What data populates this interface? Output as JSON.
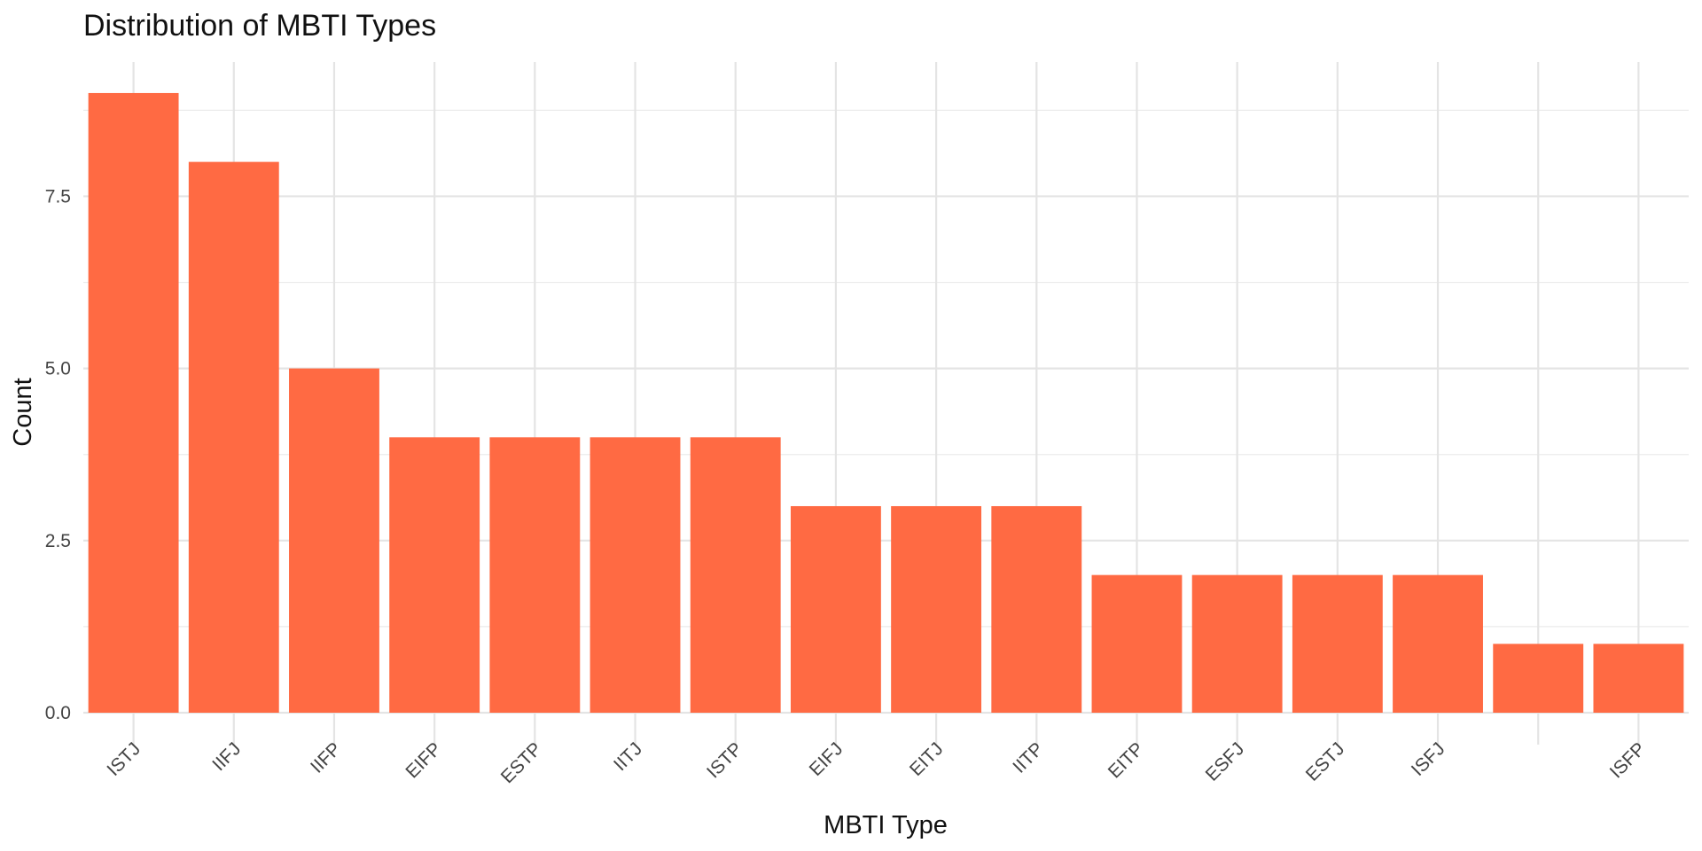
{
  "chart_data": {
    "type": "bar",
    "title": "Distribution of MBTI Types",
    "xlabel": "MBTI Type",
    "ylabel": "Count",
    "categories": [
      "ISTJ",
      "IIFJ",
      "IIFP",
      "EIFP",
      "ESTP",
      "IITJ",
      "ISTP",
      "EIFJ",
      "EITJ",
      "IITP",
      "EITP",
      "ESFJ",
      "ESTJ",
      "ISFJ",
      "",
      "ISFP"
    ],
    "values": [
      9,
      8,
      5,
      4,
      4,
      4,
      4,
      3,
      3,
      3,
      2,
      2,
      2,
      2,
      1,
      1
    ],
    "yticks": [
      0.0,
      2.5,
      5.0,
      7.5
    ],
    "ytick_labels": [
      "0.0",
      "2.5",
      "5.0",
      "7.5"
    ],
    "ylim": [
      0,
      9.45
    ],
    "bar_color": "#FF6A43",
    "grid": true,
    "legend": "none"
  }
}
